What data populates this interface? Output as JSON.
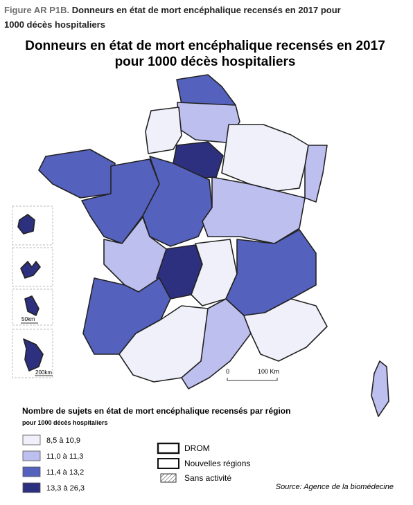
{
  "header": {
    "label": "Figure AR P1B.",
    "title": "Donneurs en état de mort encéphalique recensés en 2017 pour 1000 décès hospitaliers"
  },
  "map": {
    "title_lines": [
      "Donneurs en état de mort encéphalique recensés en 2017",
      "pour 1000 décès hospitaliers"
    ],
    "scale": {
      "zero": "0",
      "length": "100 Km"
    },
    "inset_scales": [
      "50km",
      "200km"
    ]
  },
  "legend": {
    "title": "Nombre de sujets en état de mort encéphalique recensés par région",
    "subtitle": "pour 1000 décès hospitaliers",
    "classes": [
      {
        "label": "8,5 à 10,9",
        "color": "#f0f0fa"
      },
      {
        "label": "11,0 à 11,3",
        "color": "#bdbfee"
      },
      {
        "label": "11,4 à 13,2",
        "color": "#5461bd"
      },
      {
        "label": "13,3 à 26,3",
        "color": "#2c307e"
      }
    ],
    "boundaries": {
      "drom": "DROM",
      "regions": "Nouvelles régions",
      "no_activity": "Sans activité"
    }
  },
  "source": "Source: Agence de la biomédecine"
}
